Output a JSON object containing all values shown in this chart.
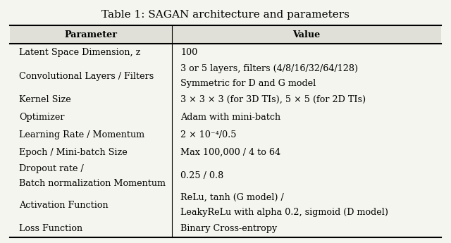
{
  "title": "Table 1: SAGAN architecture and parameters",
  "col_headers": [
    "Parameter",
    "Value"
  ],
  "rows": [
    [
      "Latent Space Dimension, z",
      "100"
    ],
    [
      "Convolutional Layers / Filters",
      "3 or 5 layers, filters (4/8/16/32/64/128)\nSymmetric for D and G model"
    ],
    [
      "Kernel Size",
      "3 × 3 × 3 (for 3D TIs), 5 × 5 (for 2D TIs)"
    ],
    [
      "Optimizer",
      "Adam with mini-batch"
    ],
    [
      "Learning Rate / Momentum",
      "2 × 10⁻⁴/0.5"
    ],
    [
      "Epoch / Mini-batch Size",
      "Max 100,000 / 4 to 64"
    ],
    [
      "Dropout rate /\nBatch normalization Momentum",
      "0.25 / 0.8"
    ],
    [
      "Activation Function",
      "ReLu, tanh (G model) /\nLeakyReLu with alpha 0.2, sigmoid (D model)"
    ],
    [
      "Loss Function",
      "Binary Cross-entropy"
    ]
  ],
  "bg_color": "#f5f5f0",
  "header_bg": "#e0e0d8",
  "col_split": 0.38,
  "font_size": 9.2,
  "title_font_size": 11
}
